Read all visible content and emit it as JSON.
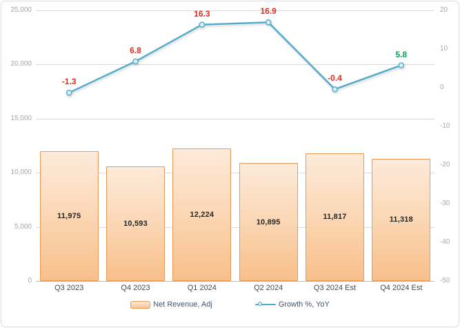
{
  "chart_data": {
    "type": "combo",
    "categories": [
      "Q3 2023",
      "Q4 2023",
      "Q1 2024",
      "Q2 2024",
      "Q3 2024 Est",
      "Q4 2024 Est"
    ],
    "series": [
      {
        "name": "Net Revenue, Adj",
        "type": "bar",
        "axis": "left",
        "values": [
          11975,
          10593,
          12224,
          10895,
          11817,
          11318
        ],
        "value_labels": [
          "11,975",
          "10,593",
          "12,224",
          "10,895",
          "11,817",
          "11,318"
        ]
      },
      {
        "name": "Growth %, YoY",
        "type": "line",
        "axis": "right",
        "values": [
          -1.3,
          6.8,
          16.3,
          16.9,
          -0.4,
          5.8
        ],
        "value_labels": [
          "-1.3",
          "6.8",
          "16.3",
          "16.9",
          "-0.4",
          "5.8"
        ],
        "label_colors": [
          "#e02b20",
          "#e02b20",
          "#e02b20",
          "#e02b20",
          "#e02b20",
          "#00a651"
        ]
      }
    ],
    "left_axis": {
      "min": 0,
      "max": 25000,
      "step": 5000,
      "tick_labels": [
        "25,000",
        "20,000",
        "15,000",
        "10,000",
        "5,000",
        "0"
      ]
    },
    "right_axis": {
      "min": -50,
      "max": 20,
      "step": 10,
      "tick_labels": [
        "20",
        "10",
        "0",
        "-10",
        "-20",
        "-30",
        "-40",
        "-50"
      ]
    },
    "grid": true,
    "legend_position": "bottom"
  },
  "legend": {
    "items": [
      {
        "label": "Net Revenue, Adj",
        "swatch": "bar"
      },
      {
        "label": "Growth %, YoY",
        "swatch": "line"
      }
    ]
  },
  "colors": {
    "line": "#4fabca",
    "marker_fill": "#d9eef5",
    "bar_border": "#e89857",
    "bar_fill_top": "#fdeada",
    "bar_fill_bottom": "#f8bf8a",
    "grid": "#d9d9d9",
    "axis_line": "#b9b9b9",
    "tick_text": "#a6a6a6",
    "category_text": "#474747",
    "legend_text": "#44546a",
    "value_label_text": "#262626"
  }
}
